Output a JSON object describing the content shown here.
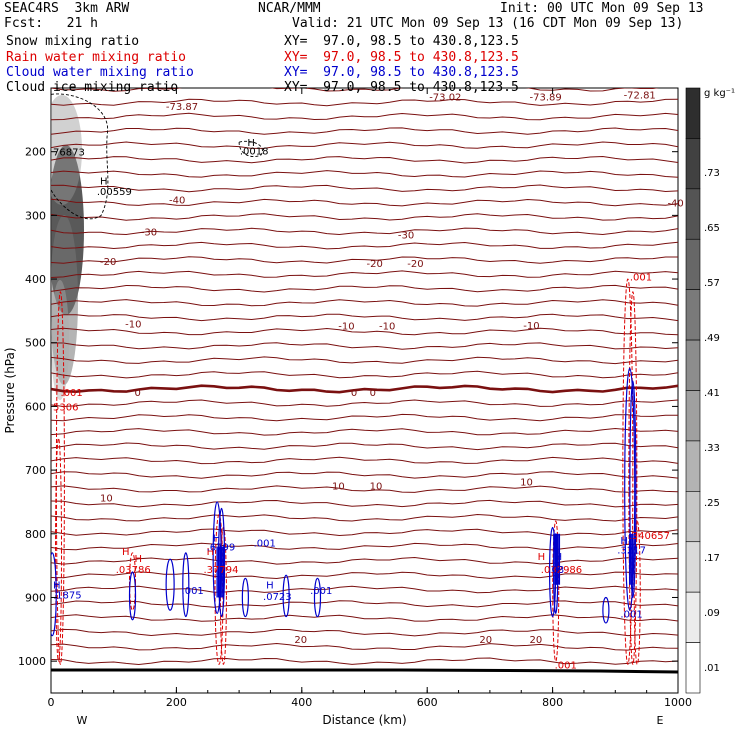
{
  "header": {
    "left_line1": "SEAC4RS  3km ARW",
    "left_line2": "Fcst:   21 h",
    "center_line1": "NCAR/MMM",
    "init": "Init: 00 UTC Mon 09 Sep 13",
    "valid": "Valid: 21 UTC Mon 09 Sep 13 (16 CDT Mon 09 Sep 13)"
  },
  "fields": [
    {
      "name": "Snow mixing ratio",
      "xy": "XY=  97.0, 98.5 to 430.8,123.5",
      "color": "#000000"
    },
    {
      "name": "Rain water mixing ratio",
      "xy": "XY=  97.0, 98.5 to 430.8,123.5",
      "color": "#dd0000"
    },
    {
      "name": "Cloud water mixing ratio",
      "xy": "XY=  97.0, 98.5 to 430.8,123.5",
      "color": "#0000cc"
    },
    {
      "name": "Cloud ice mixing ratio",
      "xy": "XY=  97.0, 98.5 to 430.8,123.5",
      "color": "#000000"
    }
  ],
  "colors": {
    "temperature_contour": "#7a1010",
    "rain_contour": "#dd0000",
    "cloud_contour": "#0000cc",
    "ice_contour": "#000000"
  },
  "chart_data": {
    "type": "contour",
    "xlabel": "Distance (km)",
    "ylabel": "Pressure (hPa)",
    "xlim": [
      0,
      1000
    ],
    "ylim": [
      1050,
      100
    ],
    "x_ticks": [
      0,
      200,
      400,
      600,
      800,
      1000
    ],
    "x_tick_labels": [
      "0",
      "200",
      "400",
      "600",
      "800",
      "1000"
    ],
    "y_ticks": [
      200,
      300,
      400,
      500,
      600,
      700,
      800,
      900,
      1000
    ],
    "y_tick_labels": [
      "200",
      "300",
      "400",
      "500",
      "600",
      "700",
      "800",
      "900",
      "1000"
    ],
    "end_labels": {
      "left": "W",
      "right": "E"
    },
    "colorbar": {
      "unit": "g kg⁻¹",
      "labels": [
        ".01",
        ".09",
        ".17",
        ".25",
        ".33",
        ".41",
        ".49",
        ".57",
        ".65",
        ".73"
      ]
    },
    "temperature_labels": [
      {
        "x": 180,
        "p": 128,
        "text": "-73.87"
      },
      {
        "x": 600,
        "p": 113,
        "text": "-73.02"
      },
      {
        "x": 760,
        "p": 113,
        "text": "-73.89"
      },
      {
        "x": 910,
        "p": 110,
        "text": "-72.81"
      },
      {
        "x": 185,
        "p": 275,
        "text": "-40"
      },
      {
        "x": 980,
        "p": 280,
        "text": "-40"
      },
      {
        "x": 140,
        "p": 325,
        "text": "-30"
      },
      {
        "x": 550,
        "p": 330,
        "text": "-30"
      },
      {
        "x": 75,
        "p": 372,
        "text": "-20"
      },
      {
        "x": 500,
        "p": 375,
        "text": "-20"
      },
      {
        "x": 565,
        "p": 375,
        "text": "-20"
      },
      {
        "x": 115,
        "p": 470,
        "text": "-10"
      },
      {
        "x": 455,
        "p": 473,
        "text": "-10"
      },
      {
        "x": 520,
        "p": 473,
        "text": "-10"
      },
      {
        "x": 750,
        "p": 472,
        "text": "-10"
      },
      {
        "x": 130,
        "p": 577,
        "text": "0"
      },
      {
        "x": 475,
        "p": 577,
        "text": "0"
      },
      {
        "x": 505,
        "p": 577,
        "text": "0"
      },
      {
        "x": 445,
        "p": 724,
        "text": "10"
      },
      {
        "x": 505,
        "p": 724,
        "text": "10"
      },
      {
        "x": 75,
        "p": 743,
        "text": "10"
      },
      {
        "x": 745,
        "p": 718,
        "text": "10"
      },
      {
        "x": 385,
        "p": 965,
        "text": "20"
      },
      {
        "x": 680,
        "p": 965,
        "text": "20"
      },
      {
        "x": 760,
        "p": 965,
        "text": "20"
      }
    ],
    "rain_labels": [
      {
        "x": 12,
        "p": 577,
        "text": ".001"
      },
      {
        "x": 0,
        "p": 600,
        "text": "5306"
      },
      {
        "x": 920,
        "p": 396,
        "text": ".001"
      },
      {
        "x": 918,
        "p": 802,
        "text": ".340657"
      },
      {
        "x": 100,
        "p": 855,
        "text": ".03786"
      },
      {
        "x": 240,
        "p": 855,
        "text": ".37794"
      },
      {
        "x": 778,
        "p": 855,
        "text": ".032986"
      },
      {
        "x": 800,
        "p": 1005,
        "text": ".001"
      }
    ],
    "rain_highs": [
      {
        "x": 130,
        "p": 838,
        "text": "H"
      },
      {
        "x": 110,
        "p": 827,
        "text": "H"
      },
      {
        "x": 245,
        "p": 827,
        "text": "H"
      },
      {
        "x": 773,
        "p": 835,
        "text": "H"
      }
    ],
    "cloud_labels": [
      {
        "x": 0,
        "p": 895,
        "text": ".1875"
      },
      {
        "x": 245,
        "p": 820,
        "text": ".6799"
      },
      {
        "x": 320,
        "p": 814,
        "text": ".001"
      },
      {
        "x": 205,
        "p": 888,
        "text": ".001"
      },
      {
        "x": 335,
        "p": 898,
        "text": ".0723"
      },
      {
        "x": 410,
        "p": 888,
        "text": ".001"
      },
      {
        "x": 790,
        "p": 855,
        "text": ".03"
      },
      {
        "x": 900,
        "p": 825,
        "text": ".3217"
      },
      {
        "x": 905,
        "p": 925,
        "text": ".001"
      }
    ],
    "cloud_highs": [
      {
        "x": 0,
        "p": 880,
        "text": "H"
      },
      {
        "x": 255,
        "p": 806,
        "text": "H"
      },
      {
        "x": 340,
        "p": 880,
        "text": "H"
      },
      {
        "x": 800,
        "p": 835,
        "text": "H"
      },
      {
        "x": 905,
        "p": 810,
        "text": "H"
      }
    ],
    "ice_labels": [
      {
        "x": 0,
        "p": 200,
        "text": "76873"
      },
      {
        "x": 298,
        "p": 198,
        "text": ".0018"
      },
      {
        "x": 70,
        "p": 262,
        "text": ".00559"
      }
    ],
    "ice_highs": [
      {
        "x": 310,
        "p": 185,
        "text": "H"
      },
      {
        "x": 75,
        "p": 245,
        "text": "H"
      }
    ]
  }
}
